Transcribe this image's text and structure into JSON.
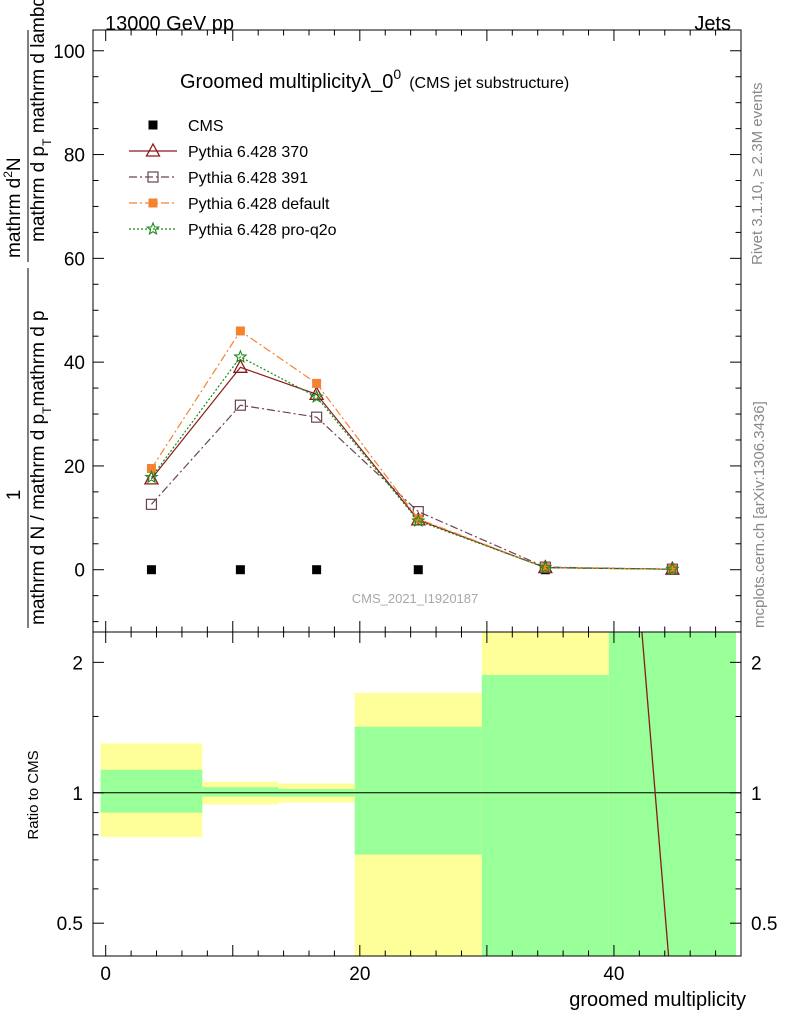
{
  "header": {
    "left": "13000 GeV pp",
    "right": "Jets"
  },
  "side_labels": {
    "rivet": "Rivet 3.1.10, ≥ 2.3M events",
    "mcplots": "mcplots.cern.ch [arXiv:1306.3436]"
  },
  "chart_data": [
    {
      "type": "line",
      "title": "Groomed multiplicityλ_0",
      "title_sup": "0",
      "subtitle": "(CMS jet substructure)",
      "watermark": "CMS_2021_I1920187",
      "ylabel_parts": {
        "prefix": "1",
        "fraction_top": "mathrm d",
        "fraction_top_sup": "2",
        "fraction_top_end": "N",
        "fraction_bottom_a": "mathrm d p",
        "fraction_bottom_sub": "T",
        "fraction_bottom_b": " mathrm d lambda",
        "main": "mathrm d N / mathrm d p",
        "main_sub": "T",
        "main_end": "mathrm d p"
      },
      "ylim": [
        -12,
        104
      ],
      "yticks": [
        0,
        20,
        40,
        60,
        80,
        100
      ],
      "xlim": [
        -1,
        50
      ],
      "grid": false,
      "legend_position": "top-left",
      "series": [
        {
          "name": "CMS",
          "color": "#000000",
          "marker": "filled-square",
          "x": [
            3.6,
            10.6,
            16.6,
            24.6,
            34.6,
            44.6
          ],
          "y": [
            0,
            0,
            0,
            0,
            0,
            0
          ]
        },
        {
          "name": "Pythia 6.428 370",
          "color": "#8b1a1a",
          "marker": "open-triangle",
          "dash": "",
          "x": [
            3.6,
            10.6,
            16.6,
            24.6,
            34.6,
            44.6
          ],
          "y": [
            17.5,
            39.0,
            33.8,
            9.6,
            0.4,
            0.1
          ]
        },
        {
          "name": "Pythia 6.428 391",
          "color": "#6b4452",
          "marker": "open-square",
          "dash": "8,3,2,3",
          "x": [
            3.6,
            10.6,
            16.6,
            24.6,
            34.6,
            44.6
          ],
          "y": [
            12.6,
            31.7,
            29.4,
            11.2,
            0.5,
            0.1
          ]
        },
        {
          "name": "Pythia 6.428 default",
          "color": "#f58231",
          "marker": "filled-square",
          "dash": "8,3,2,3",
          "x": [
            3.6,
            10.6,
            16.6,
            24.6,
            34.6,
            44.6
          ],
          "y": [
            19.5,
            46.0,
            35.9,
            9.8,
            0.4,
            0.1
          ]
        },
        {
          "name": "Pythia 6.428 pro-q2o",
          "color": "#1a8a1a",
          "marker": "star",
          "dash": "2,2",
          "x": [
            3.6,
            10.6,
            16.6,
            24.6,
            34.6,
            44.6
          ],
          "y": [
            17.8,
            41.0,
            33.3,
            9.4,
            0.4,
            0.1
          ]
        }
      ]
    },
    {
      "type": "area",
      "ylabel": "Ratio to CMS",
      "xlabel": "groomed multiplicity",
      "ylim": [
        0.42,
        2.35
      ],
      "log_y": true,
      "yticks": [
        0.5,
        1,
        2
      ],
      "xticks": [
        0,
        20,
        40
      ],
      "xlim": [
        -1,
        50
      ],
      "bins": [
        {
          "x0": -0.4,
          "x1": 7.6,
          "inner": [
            0.9,
            1.13
          ],
          "outer": [
            0.79,
            1.3
          ]
        },
        {
          "x0": 7.6,
          "x1": 13.6,
          "inner": [
            0.98,
            1.03
          ],
          "outer": [
            0.94,
            1.06
          ]
        },
        {
          "x0": 13.6,
          "x1": 19.6,
          "inner": [
            0.98,
            1.02
          ],
          "outer": [
            0.95,
            1.05
          ]
        },
        {
          "x0": 19.6,
          "x1": 29.6,
          "inner": [
            0.72,
            1.42
          ],
          "outer": [
            0.42,
            1.7
          ]
        },
        {
          "x0": 29.6,
          "x1": 39.6,
          "inner": [
            0.42,
            1.87
          ],
          "outer": [
            0.42,
            2.35
          ]
        },
        {
          "x0": 39.6,
          "x1": 49.6,
          "inner": [
            0.42,
            2.35
          ],
          "outer": [
            0.42,
            2.35
          ]
        }
      ],
      "ratio_line": {
        "color": "#8b1a1a",
        "x": [
          42.2,
          44.3
        ],
        "y": [
          2.35,
          0.42
        ]
      }
    }
  ]
}
